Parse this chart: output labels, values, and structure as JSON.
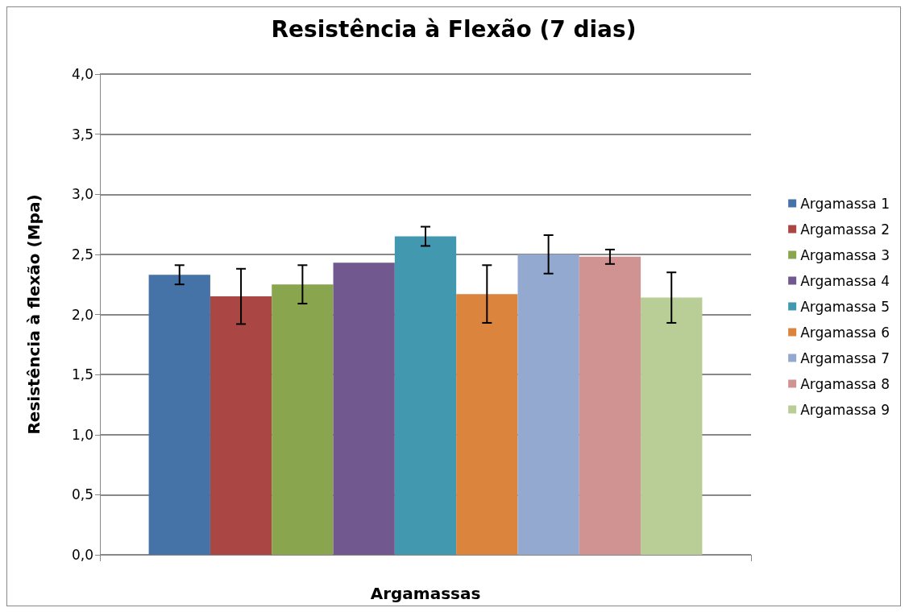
{
  "chart_data": {
    "type": "bar",
    "title": "Resistência à Flexão (7 dias)",
    "xlabel": "Argamassas",
    "ylabel": "Resistência à flexão (Mpa)",
    "categories": [
      null
    ],
    "series": [
      {
        "name": "Argamassa 1",
        "color": "#4572a7",
        "values": [
          2.33
        ],
        "errors": [
          0.08
        ]
      },
      {
        "name": "Argamassa 2",
        "color": "#aa4643",
        "values": [
          2.15
        ],
        "errors": [
          0.23
        ]
      },
      {
        "name": "Argamassa 3",
        "color": "#89a54e",
        "values": [
          2.25
        ],
        "errors": [
          0.16
        ]
      },
      {
        "name": "Argamassa 4",
        "color": "#71588f",
        "values": [
          2.43
        ],
        "errors": [
          null
        ]
      },
      {
        "name": "Argamassa 5",
        "color": "#4198af",
        "values": [
          2.65
        ],
        "errors": [
          0.08
        ]
      },
      {
        "name": "Argamassa 6",
        "color": "#db843d",
        "values": [
          2.17
        ],
        "errors": [
          0.24
        ]
      },
      {
        "name": "Argamassa 7",
        "color": "#93a9cf",
        "values": [
          2.5
        ],
        "errors": [
          0.16
        ]
      },
      {
        "name": "Argamassa 8",
        "color": "#d19392",
        "values": [
          2.48
        ],
        "errors": [
          0.06
        ]
      },
      {
        "name": "Argamassa 9",
        "color": "#b9cd96",
        "values": [
          2.14
        ],
        "errors": [
          0.21
        ]
      }
    ],
    "ylim": [
      0,
      4
    ],
    "yticks": [
      {
        "value": 0,
        "label": "0,0"
      },
      {
        "value": 0.5,
        "label": "0,5"
      },
      {
        "value": 1,
        "label": "1,0"
      },
      {
        "value": 1.5,
        "label": "1,5"
      },
      {
        "value": 2,
        "label": "2,0"
      },
      {
        "value": 2.5,
        "label": "2,5"
      },
      {
        "value": 3,
        "label": "3,0"
      },
      {
        "value": 3.5,
        "label": "3,5"
      },
      {
        "value": 4,
        "label": "4,0"
      }
    ],
    "grid": "y",
    "legend": "right"
  }
}
